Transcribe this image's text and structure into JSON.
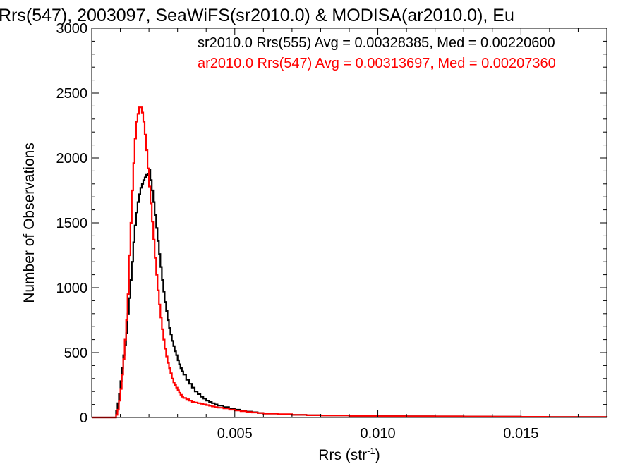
{
  "chart_data": {
    "type": "line",
    "title": "Rrs(547), 2003097, SeaWiFS(sr2010.0) & MODISA(ar2010.0), Eu",
    "xlabel": "Rrs (str",
    "xlabel_sup": "-1",
    "xlabel_close": ")",
    "ylabel": "Number of Observations",
    "xlim": [
      0.0,
      0.018
    ],
    "ylim": [
      0,
      3000
    ],
    "xticks": [
      0.005,
      0.01,
      0.015
    ],
    "xtick_labels": [
      "0.005",
      "0.010",
      "0.015"
    ],
    "yticks": [
      0,
      500,
      1000,
      1500,
      2000,
      2500,
      3000
    ],
    "ytick_labels": [
      "0",
      "500",
      "1000",
      "1500",
      "2000",
      "2500",
      "3000"
    ],
    "grid": false,
    "legend_position": "top-right",
    "series": [
      {
        "name": "sr2010.0 Rrs(555) Avg = 0.00328385, Med = 0.00220600",
        "color": "#000000",
        "x": [
          0.0,
          0.0008,
          0.00085,
          0.0009,
          0.00095,
          0.001,
          0.00105,
          0.0011,
          0.00115,
          0.0012,
          0.00125,
          0.0013,
          0.00135,
          0.0014,
          0.00145,
          0.0015,
          0.00155,
          0.0016,
          0.00165,
          0.0017,
          0.00175,
          0.0018,
          0.00185,
          0.0019,
          0.00195,
          0.002,
          0.00205,
          0.0021,
          0.00215,
          0.0022,
          0.00225,
          0.0023,
          0.00235,
          0.0024,
          0.00245,
          0.0025,
          0.00255,
          0.0026,
          0.00265,
          0.0027,
          0.00275,
          0.0028,
          0.00285,
          0.0029,
          0.00295,
          0.003,
          0.00305,
          0.0031,
          0.00315,
          0.0032,
          0.0033,
          0.0034,
          0.0035,
          0.0036,
          0.0037,
          0.0038,
          0.0039,
          0.004,
          0.0041,
          0.0042,
          0.0043,
          0.0044,
          0.0046,
          0.0048,
          0.005,
          0.0052,
          0.0054,
          0.0056,
          0.0058,
          0.006,
          0.0065,
          0.007,
          0.0075,
          0.008,
          0.009,
          0.01,
          0.011,
          0.012,
          0.013,
          0.014,
          0.015,
          0.016,
          0.017,
          0.018
        ],
        "values": [
          0,
          0,
          50,
          110,
          180,
          280,
          380,
          480,
          560,
          650,
          800,
          920,
          1060,
          1200,
          1350,
          1480,
          1580,
          1660,
          1720,
          1770,
          1800,
          1830,
          1850,
          1870,
          1880,
          1910,
          1830,
          1750,
          1660,
          1560,
          1460,
          1360,
          1260,
          1160,
          1060,
          970,
          890,
          820,
          750,
          690,
          640,
          590,
          550,
          510,
          480,
          440,
          410,
          380,
          355,
          330,
          290,
          260,
          230,
          200,
          180,
          160,
          145,
          130,
          120,
          110,
          100,
          92,
          80,
          70,
          60,
          52,
          45,
          40,
          35,
          30,
          24,
          20,
          17,
          15,
          12,
          10,
          9,
          8,
          7,
          6,
          5,
          4,
          4,
          3
        ]
      },
      {
        "name": "ar2010.0 Rrs(547) Avg = 0.00313697, Med = 0.00207360",
        "color": "#ff0000",
        "x": [
          0.0,
          0.0008,
          0.00085,
          0.0009,
          0.00095,
          0.001,
          0.00105,
          0.0011,
          0.00115,
          0.0012,
          0.00125,
          0.0013,
          0.00135,
          0.0014,
          0.00145,
          0.0015,
          0.00155,
          0.0016,
          0.00165,
          0.0017,
          0.00175,
          0.0018,
          0.00185,
          0.0019,
          0.00195,
          0.002,
          0.00205,
          0.0021,
          0.00215,
          0.0022,
          0.00225,
          0.0023,
          0.00235,
          0.0024,
          0.00245,
          0.0025,
          0.00255,
          0.0026,
          0.00265,
          0.0027,
          0.00275,
          0.0028,
          0.00285,
          0.0029,
          0.00295,
          0.003,
          0.00305,
          0.0031,
          0.00315,
          0.0032,
          0.0033,
          0.0034,
          0.0035,
          0.0036,
          0.0037,
          0.0038,
          0.0039,
          0.004,
          0.0041,
          0.0042,
          0.0043,
          0.0044,
          0.0046,
          0.0048,
          0.005,
          0.0052,
          0.0054,
          0.0056,
          0.0058,
          0.006,
          0.0065,
          0.007,
          0.0075,
          0.008,
          0.009,
          0.01,
          0.011,
          0.012,
          0.013,
          0.014,
          0.015,
          0.016,
          0.017,
          0.018
        ],
        "values": [
          0,
          0,
          20,
          60,
          130,
          220,
          330,
          450,
          600,
          750,
          950,
          1250,
          1500,
          1750,
          1960,
          2150,
          2280,
          2340,
          2390,
          2390,
          2350,
          2280,
          2180,
          2060,
          1920,
          1780,
          1650,
          1510,
          1370,
          1230,
          1100,
          980,
          870,
          770,
          680,
          600,
          530,
          470,
          420,
          380,
          340,
          300,
          270,
          250,
          230,
          210,
          190,
          175,
          160,
          150,
          140,
          130,
          120,
          115,
          110,
          105,
          100,
          95,
          90,
          85,
          80,
          75,
          70,
          60,
          54,
          48,
          42,
          38,
          34,
          30,
          25,
          20,
          17,
          15,
          12,
          10,
          9,
          8,
          7,
          6,
          5,
          4,
          4,
          3
        ]
      }
    ]
  }
}
